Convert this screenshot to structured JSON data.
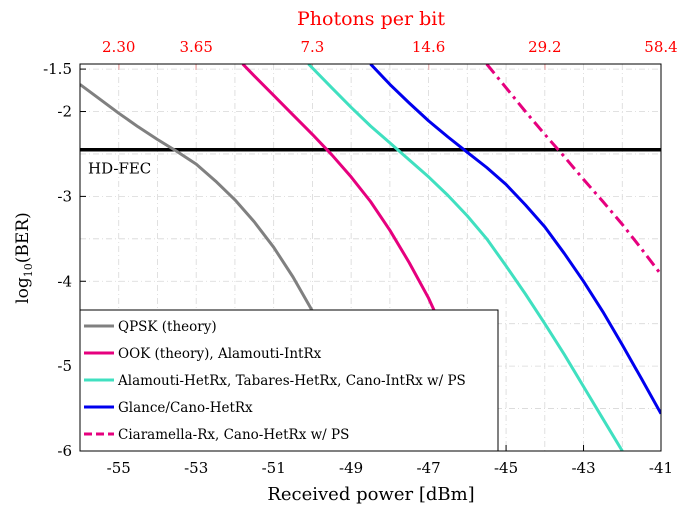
{
  "chart_data": {
    "type": "line",
    "title": "",
    "xlabel": "Received power [dBm]",
    "ylabel": "log10(BER)",
    "ylabel_main": "log",
    "ylabel_sub": "10",
    "ylabel_rest": "(BER)",
    "top_axis_label": "Photons per bit",
    "top_tick_labels": [
      "2.30",
      "3.65",
      "7.3",
      "14.6",
      "29.2",
      "58.4"
    ],
    "top_tick_positions_dbm": [
      -55,
      -53,
      -50,
      -47,
      -44,
      -41
    ],
    "xlim": [
      -56,
      -41
    ],
    "ylim": [
      -6,
      -1.44
    ],
    "x_ticks": [
      -55,
      -53,
      -51,
      -49,
      -47,
      -45,
      -43,
      -41
    ],
    "y_ticks": [
      -6,
      -5,
      -4,
      -3,
      -2,
      -1.5
    ],
    "y_tick_labels": [
      "-6",
      "-5",
      "-4",
      "-3",
      "-2",
      "-1.5"
    ],
    "grid": true,
    "legend_position": "bottom-left",
    "threshold": {
      "label": "HD-FEC",
      "y": -2.45,
      "color": "#000000"
    },
    "series": [
      {
        "name": "QPSK (theory)",
        "color": "#808080",
        "dash": "solid",
        "x": [
          -56,
          -55.5,
          -55,
          -54.5,
          -54,
          -53.5,
          -53,
          -52.5,
          -52,
          -51.5,
          -51,
          -50.5,
          -50,
          -49.5
        ],
        "y": [
          -1.68,
          -1.85,
          -2.02,
          -2.18,
          -2.33,
          -2.47,
          -2.62,
          -2.82,
          -3.04,
          -3.3,
          -3.6,
          -3.95,
          -4.35,
          -4.82
        ]
      },
      {
        "name": "OOK (theory), Alamouti-IntRx",
        "color": "#e6007e",
        "dash": "solid",
        "x": [
          -51.8,
          -51.5,
          -51,
          -50.5,
          -50,
          -49.5,
          -49,
          -48.5,
          -48,
          -47.5,
          -47,
          -46.6
        ],
        "y": [
          -1.44,
          -1.58,
          -1.81,
          -2.04,
          -2.27,
          -2.51,
          -2.77,
          -3.06,
          -3.4,
          -3.78,
          -4.2,
          -4.6
        ]
      },
      {
        "name": "Alamouti-HetRx, Tabares-HetRx, Cano-IntRx w/ PS",
        "color": "#40e0c0",
        "dash": "solid",
        "x": [
          -50.1,
          -49.5,
          -49,
          -48.5,
          -48,
          -47.5,
          -47,
          -46.5,
          -46,
          -45.5,
          -45,
          -44.5,
          -44,
          -43.5,
          -43,
          -42.5,
          -42
        ],
        "y": [
          -1.44,
          -1.72,
          -1.95,
          -2.17,
          -2.37,
          -2.57,
          -2.77,
          -2.99,
          -3.23,
          -3.5,
          -3.82,
          -4.15,
          -4.5,
          -4.86,
          -5.24,
          -5.62,
          -6.0
        ]
      },
      {
        "name": "Glance/Cano-HetRx",
        "color": "#0000ee",
        "dash": "solid",
        "x": [
          -48.5,
          -48,
          -47.5,
          -47,
          -46.5,
          -46,
          -45.5,
          -45,
          -44.5,
          -44,
          -43.5,
          -43,
          -42.5,
          -42,
          -41.5,
          -41
        ],
        "y": [
          -1.44,
          -1.68,
          -1.9,
          -2.11,
          -2.3,
          -2.48,
          -2.66,
          -2.86,
          -3.1,
          -3.36,
          -3.67,
          -4.0,
          -4.36,
          -4.75,
          -5.15,
          -5.56
        ]
      },
      {
        "name": "Ciaramella-Rx, Cano-HetRx w/ PS",
        "color": "#e6007e",
        "dash": "dashed",
        "x": [
          -45.5,
          -45,
          -44.5,
          -44,
          -43.5,
          -43,
          -42.5,
          -42,
          -41.5,
          -41
        ],
        "y": [
          -1.44,
          -1.72,
          -2.0,
          -2.27,
          -2.53,
          -2.8,
          -3.06,
          -3.33,
          -3.62,
          -3.92
        ]
      }
    ]
  }
}
